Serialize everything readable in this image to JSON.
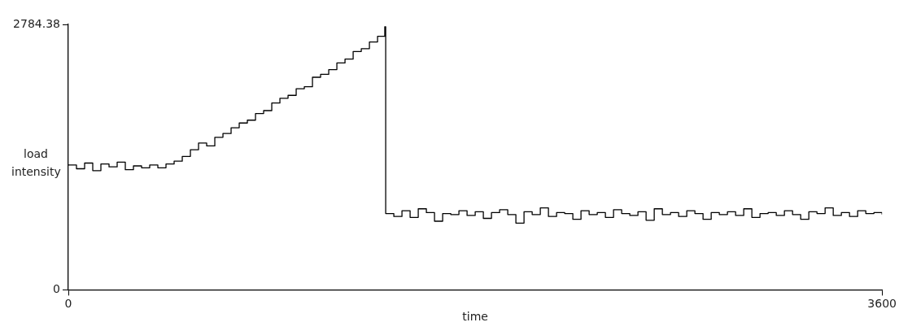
{
  "chart_data": {
    "type": "step",
    "xlabel": "time",
    "ylabel": "load intensity",
    "xlim": [
      0,
      3600
    ],
    "xticks": [
      0,
      3600
    ],
    "ylim": [
      0,
      2784.38
    ],
    "yticks": [
      0,
      2784.38
    ],
    "grid": false,
    "legend": false,
    "marker": "none",
    "x": [
      0,
      36,
      72,
      108,
      144,
      180,
      216,
      252,
      288,
      324,
      360,
      396,
      432,
      468,
      504,
      540,
      576,
      612,
      648,
      684,
      720,
      756,
      792,
      828,
      864,
      900,
      936,
      972,
      1008,
      1044,
      1080,
      1116,
      1152,
      1188,
      1224,
      1260,
      1296,
      1332,
      1368,
      1400,
      1404,
      1440,
      1476,
      1512,
      1548,
      1584,
      1620,
      1656,
      1692,
      1728,
      1764,
      1800,
      1836,
      1872,
      1908,
      1944,
      1980,
      2016,
      2052,
      2088,
      2124,
      2160,
      2196,
      2232,
      2268,
      2304,
      2340,
      2376,
      2412,
      2448,
      2484,
      2520,
      2556,
      2592,
      2628,
      2664,
      2700,
      2736,
      2772,
      2808,
      2844,
      2880,
      2916,
      2952,
      2988,
      3024,
      3060,
      3096,
      3132,
      3168,
      3204,
      3240,
      3276,
      3312,
      3348,
      3384,
      3420,
      3456,
      3492,
      3528,
      3564,
      3600
    ],
    "series": [
      {
        "color": "#000000",
        "values": [
          1310,
          1270,
          1330,
          1250,
          1320,
          1290,
          1340,
          1260,
          1300,
          1280,
          1310,
          1280,
          1320,
          1350,
          1400,
          1470,
          1540,
          1510,
          1600,
          1640,
          1700,
          1750,
          1780,
          1850,
          1880,
          1960,
          2010,
          2040,
          2110,
          2130,
          2230,
          2260,
          2310,
          2380,
          2420,
          2500,
          2530,
          2600,
          2660,
          2760,
          800,
          770,
          830,
          760,
          850,
          810,
          720,
          800,
          790,
          830,
          780,
          820,
          750,
          810,
          840,
          790,
          700,
          820,
          790,
          860,
          770,
          810,
          800,
          740,
          830,
          790,
          810,
          760,
          840,
          800,
          780,
          820,
          730,
          850,
          790,
          810,
          770,
          830,
          800,
          740,
          810,
          790,
          820,
          780,
          850,
          760,
          800,
          810,
          780,
          830,
          790,
          740,
          820,
          800,
          860,
          780,
          810,
          770,
          830,
          800,
          810,
          790
        ]
      }
    ]
  }
}
